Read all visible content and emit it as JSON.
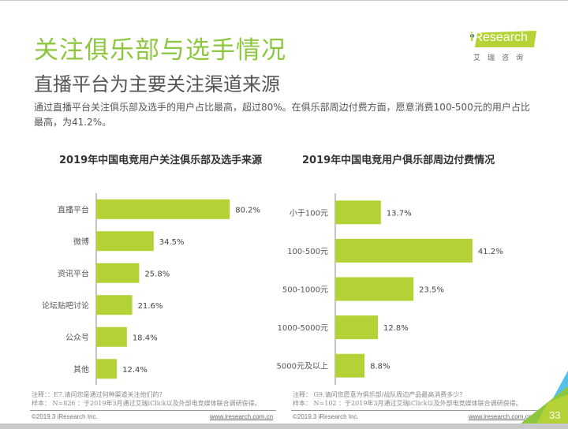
{
  "header": {
    "title": "关注俱乐部与选手情况",
    "subtitle": "直播平台为主要关注渠道来源",
    "summary": "通过直播平台关注俱乐部及选手的用户占比最高，超过80%。在俱乐部周边付费方面，愿意消费100-500元的用户占比最高，为41.2%。"
  },
  "logo": {
    "brand_i": "i",
    "brand_rest": "Research",
    "cn": "艾瑞咨询"
  },
  "colors": {
    "accent": "#8dc63f",
    "bar": "#b2d235",
    "axis": "#888888"
  },
  "chart_data": [
    {
      "type": "bar",
      "orientation": "horizontal",
      "title": "2019年中国电竞用户关注俱乐部及选手来源",
      "categories": [
        "直播平台",
        "微博",
        "资讯平台",
        "论坛贴吧讨论",
        "公众号",
        "其他"
      ],
      "values": [
        80.2,
        34.5,
        25.8,
        21.6,
        18.4,
        12.4
      ],
      "labels": [
        "80.2%",
        "34.5%",
        "25.8%",
        "21.6%",
        "18.4%",
        "12.4%"
      ],
      "unit": "%",
      "xlabel": "",
      "ylabel": "",
      "xlim": [
        0,
        100
      ],
      "grid": false,
      "legend": "none"
    },
    {
      "type": "bar",
      "orientation": "horizontal",
      "title": "2019年中国电竞用户俱乐部周边付费情况",
      "categories": [
        "小于100元",
        "100-500元",
        "500-1000元",
        "1000-5000元",
        "5000元及以上"
      ],
      "values": [
        13.7,
        41.2,
        23.5,
        12.8,
        8.8
      ],
      "labels": [
        "13.7%",
        "41.2%",
        "23.5%",
        "12.8%",
        "8.8%"
      ],
      "unit": "%",
      "xlabel": "",
      "ylabel": "",
      "xlim": [
        0,
        50
      ],
      "grid": false,
      "legend": "none"
    }
  ],
  "footer": {
    "left": {
      "note": "注释：：E7.请问您是通过何种渠道关注他们的？",
      "sample": "样本： N=826 ：于2019年3月通过艾瑞iClick以及外部电竞媒体联合调研获得。",
      "copyright": "©2019.3 iResearch Inc.",
      "site": "www.iresearch.com.cn"
    },
    "right": {
      "note": "注释： G9.请问您愿意为俱乐部/战队周边产品最高消费多少？",
      "sample": "样本： N=102 ：于2019年3月通过艾瑞iClick以及外部电竞媒体联合调研获得。",
      "copyright": "©2019.3 iResearch Inc.",
      "site": "www.iresearch.com.cn"
    },
    "page_number": "33"
  }
}
